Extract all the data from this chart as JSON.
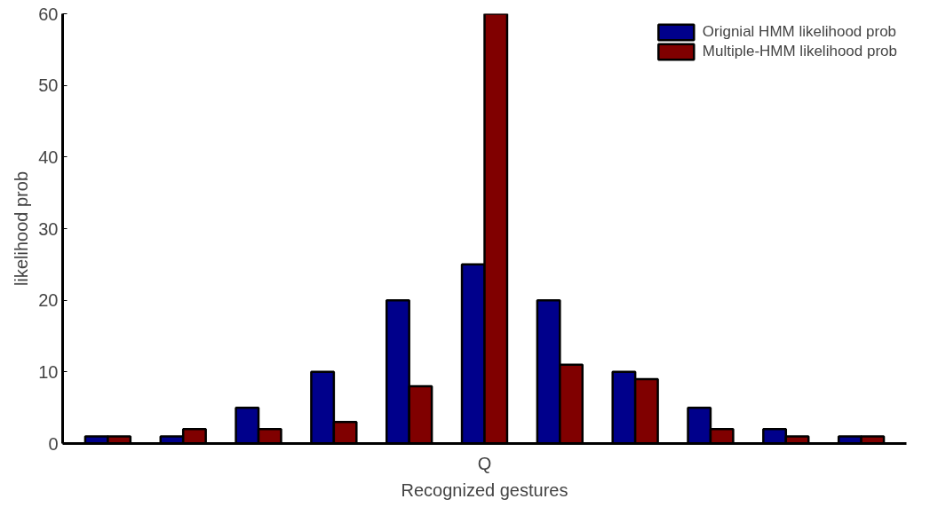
{
  "chart_data": {
    "type": "bar",
    "xlabel": "Recognized gestures",
    "ylabel": "likelihood prob",
    "categories": [
      null,
      null,
      null,
      null,
      null,
      "Q",
      null,
      null,
      null,
      null,
      null
    ],
    "series": [
      {
        "name": "Orignial HMM likelihood prob",
        "color": "#00008b",
        "values": [
          1,
          1,
          5,
          10,
          20,
          25,
          20,
          10,
          5,
          2,
          1
        ]
      },
      {
        "name": "Multiple-HMM likelihood prob",
        "color": "#800000",
        "values": [
          1,
          2,
          2,
          3,
          8,
          60,
          11,
          9,
          2,
          1,
          1
        ]
      }
    ],
    "ylim": [
      0,
      60
    ],
    "yticks": [
      0,
      10,
      20,
      30,
      40,
      50,
      60
    ],
    "grid": false,
    "legend": "top right"
  }
}
